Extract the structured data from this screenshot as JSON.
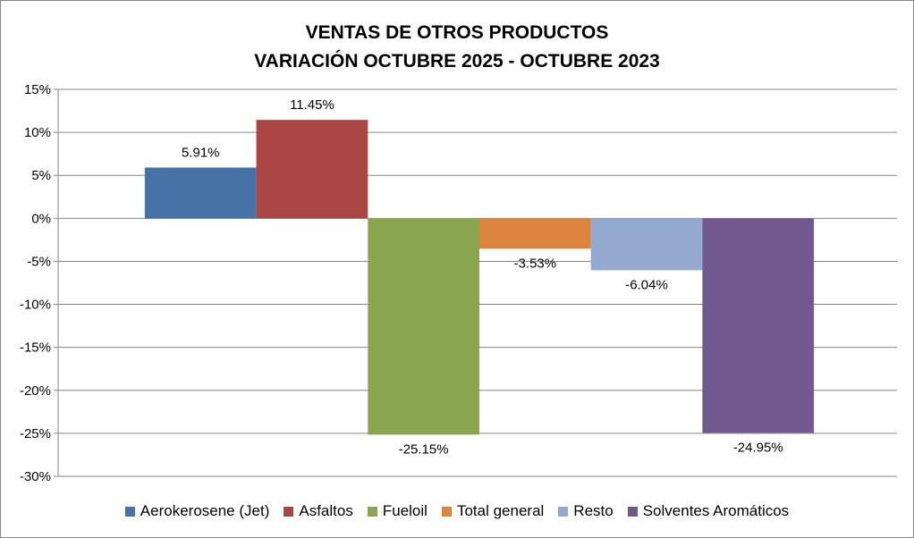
{
  "chart_data": {
    "type": "bar",
    "title": "VENTAS DE OTROS PRODUCTOS",
    "subtitle": "VARIACIÓN OCTUBRE 2025 - OCTUBRE 2023",
    "xlabel": "",
    "ylabel": "",
    "ylim": [
      -30,
      15
    ],
    "yticks": [
      15,
      10,
      5,
      0,
      -5,
      -10,
      -15,
      -20,
      -25,
      -30
    ],
    "ytick_labels": [
      "15%",
      "10%",
      "5%",
      "0%",
      "-5%",
      "-10%",
      "-15%",
      "-20%",
      "-25%",
      "-30%"
    ],
    "grid": true,
    "legend_position": "bottom",
    "series": [
      {
        "name": "Aerokerosene (Jet)",
        "value": 5.91,
        "label": "5.91%",
        "color": "#4572A7"
      },
      {
        "name": "Asfaltos",
        "value": 11.45,
        "label": "11.45%",
        "color": "#AA4643"
      },
      {
        "name": "Fueloil",
        "value": -25.15,
        "label": "-25.15%",
        "color": "#89A54E"
      },
      {
        "name": "Total general",
        "value": -3.53,
        "label": "-3.53%",
        "color": "#DB843D"
      },
      {
        "name": "Resto",
        "value": -6.04,
        "label": "-6.04%",
        "color": "#93A9CF"
      },
      {
        "name": "Solventes Aromáticos",
        "value": -24.95,
        "label": "-24.95%",
        "color": "#71588F"
      }
    ]
  }
}
